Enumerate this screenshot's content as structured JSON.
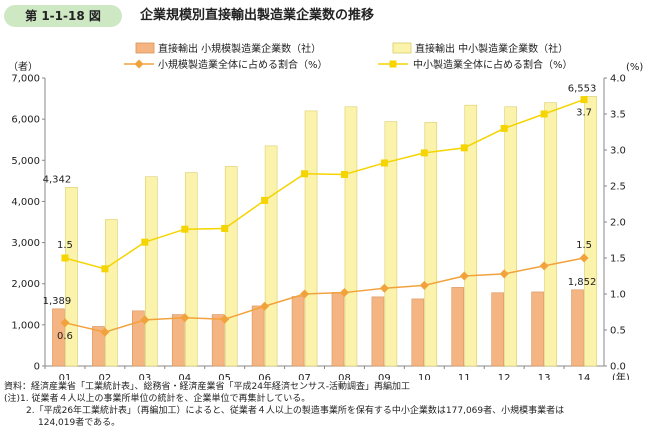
{
  "figure": {
    "number": "第 1-1-18 図",
    "title": "企業規模別直接輸出製造業企業数の推移"
  },
  "chart_data": {
    "type": "bar",
    "categories": [
      "01",
      "02",
      "03",
      "04",
      "05",
      "06",
      "07",
      "08",
      "09",
      "10",
      "11",
      "12",
      "13",
      "14"
    ],
    "x_unit_suffix": "(年)",
    "left_axis": {
      "unit": "（者）",
      "min": 0,
      "max": 7000,
      "ticks": [
        "0",
        "1,000",
        "2,000",
        "3,000",
        "4,000",
        "5,000",
        "6,000",
        "7,000"
      ]
    },
    "right_axis": {
      "unit": "(%)",
      "min": 0,
      "max": 4.0,
      "ticks": [
        "0.0",
        "0.5",
        "1.0",
        "1.5",
        "2.0",
        "2.5",
        "3.0",
        "3.5",
        "4.0"
      ]
    },
    "bar_series": [
      {
        "name": "直接輸出 小規模製造業企業数（社）",
        "color": "#f5b583",
        "stroke": "#d8935a",
        "values": [
          1389,
          960,
          1340,
          1250,
          1250,
          1460,
          1690,
          1790,
          1680,
          1630,
          1910,
          1780,
          1800,
          1852
        ]
      },
      {
        "name": "直接輸出 中小製造業企業数（社）",
        "color": "#fbf3ab",
        "stroke": "#d9cd6a",
        "values": [
          4342,
          3560,
          4600,
          4700,
          4850,
          5350,
          6200,
          6300,
          5940,
          5920,
          6340,
          6300,
          6400,
          6553
        ]
      }
    ],
    "line_series": [
      {
        "name": "小規模製造業全体に占める割合（%）",
        "color": "#f2a23c",
        "marker": "diamond",
        "values": [
          0.6,
          0.47,
          0.64,
          0.67,
          0.65,
          0.83,
          1.0,
          1.02,
          1.08,
          1.12,
          1.25,
          1.28,
          1.39,
          1.5
        ]
      },
      {
        "name": "中小製造業全体に占める割合（%）",
        "color": "#f5d400",
        "marker": "square",
        "values": [
          1.5,
          1.35,
          1.72,
          1.9,
          1.91,
          2.3,
          2.67,
          2.66,
          2.82,
          2.96,
          3.03,
          3.3,
          3.5,
          3.7
        ]
      }
    ],
    "data_labels": [
      {
        "text": "4,342",
        "series": "bar",
        "index": 0,
        "series_index": 1
      },
      {
        "text": "1,389",
        "series": "bar",
        "index": 0,
        "series_index": 0
      },
      {
        "text": "6,553",
        "series": "bar",
        "index": 13,
        "series_index": 1
      },
      {
        "text": "1,852",
        "series": "bar",
        "index": 13,
        "series_index": 0
      },
      {
        "text": "1.5",
        "series": "line",
        "index": 0,
        "series_index": 1
      },
      {
        "text": "0.6",
        "series": "line",
        "index": 0,
        "series_index": 0
      },
      {
        "text": "3.7",
        "series": "line",
        "index": 13,
        "series_index": 1
      },
      {
        "text": "1.5",
        "series": "line",
        "index": 13,
        "series_index": 0
      }
    ],
    "grid": false
  },
  "notes": {
    "source": "資料：経済産業省「工業統計表」、総務省・経済産業省「平成24年経済センサス‐活動調査」再編加工",
    "note1": "(注)1. 従業者４人以上の事業所単位の統計を、企業単位で再集計している。",
    "note2": "2.「平成26年工業統計表」（再編加工）によると、従業者４人以上の製造事業所を保有する中小企業数は177,069者、小規模事業者は",
    "note2_cont": "124,019者である。"
  }
}
